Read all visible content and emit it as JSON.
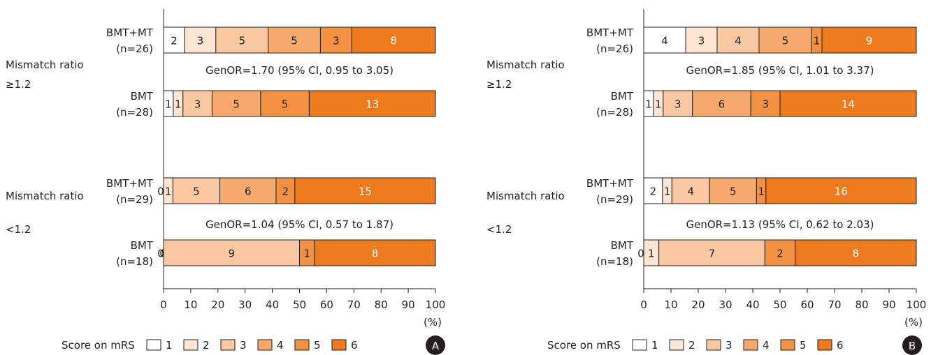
{
  "legend": {
    "title": "Score on mRS",
    "items": [
      "1",
      "2",
      "3",
      "4",
      "5",
      "6"
    ],
    "colors": [
      "#ffffff",
      "#fde5d3",
      "#f9c7a1",
      "#f5a96c",
      "#f29142",
      "#ee7a1e"
    ]
  },
  "stroke_color": "#231f20",
  "chart_data": [
    {
      "type": "bar",
      "stacked": "horizontal-100%",
      "panel": "A",
      "xlim": [
        0,
        100
      ],
      "xticks": [
        "0",
        "10",
        "20",
        "30",
        "40",
        "50",
        "60",
        "70",
        "80",
        "90",
        "100"
      ],
      "xunit": "(%)",
      "groups": [
        {
          "label_line1": "Mismatch ratio",
          "label_line2": "≥1.2",
          "genor": "GenOR=1.70 (95% CI, 0.95 to 3.05)",
          "bars": [
            {
              "name_line1": "BMT+MT",
              "name_line2": "(n=26)",
              "values": [
                2,
                3,
                5,
                5,
                3,
                8
              ]
            },
            {
              "name_line1": "BMT",
              "name_line2": "(n=28)",
              "values": [
                1,
                1,
                3,
                5,
                5,
                13
              ]
            }
          ]
        },
        {
          "label_line1": "Mismatch ratio",
          "label_line2": "<1.2",
          "genor": "GenOR=1.04 (95% CI, 0.57 to 1.87)",
          "bars": [
            {
              "name_line1": "BMT+MT",
              "name_line2": "(n=29)",
              "values": [
                0,
                1,
                5,
                6,
                2,
                15
              ]
            },
            {
              "name_line1": "BMT",
              "name_line2": "(n=18)",
              "values": [
                0,
                0,
                9,
                0,
                1,
                8
              ]
            }
          ]
        }
      ]
    },
    {
      "type": "bar",
      "stacked": "horizontal-100%",
      "panel": "B",
      "xlim": [
        0,
        100
      ],
      "xticks": [
        "0",
        "10",
        "20",
        "30",
        "40",
        "50",
        "60",
        "70",
        "80",
        "90",
        "100"
      ],
      "xunit": "(%)",
      "groups": [
        {
          "label_line1": "Mismatch ratio",
          "label_line2": "≥1.2",
          "genor": "GenOR=1.85 (95% CI, 1.01 to 3.37)",
          "bars": [
            {
              "name_line1": "BMT+MT",
              "name_line2": "(n=26)",
              "values": [
                4,
                3,
                4,
                5,
                1,
                9
              ]
            },
            {
              "name_line1": "BMT",
              "name_line2": "(n=28)",
              "values": [
                1,
                1,
                3,
                6,
                3,
                14
              ]
            }
          ]
        },
        {
          "label_line1": "Mismatch ratio",
          "label_line2": "<1.2",
          "genor": "GenOR=1.13 (95% CI, 0.62 to 2.03)",
          "bars": [
            {
              "name_line1": "BMT+MT",
              "name_line2": "(n=29)",
              "values": [
                2,
                1,
                4,
                5,
                1,
                16
              ]
            },
            {
              "name_line1": "BMT",
              "name_line2": "(n=18)",
              "values": [
                0,
                1,
                7,
                0,
                2,
                8
              ]
            }
          ]
        }
      ]
    }
  ]
}
